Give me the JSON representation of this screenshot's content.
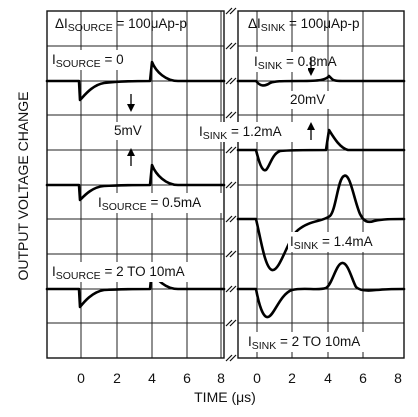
{
  "chart_data": {
    "type": "line",
    "xlabel": "TIME (μs)",
    "ylabel": "OUTPUT VOLTAGE CHANGE",
    "panels": [
      {
        "id": "source",
        "title_main": "ΔI",
        "title_sub": "SOURCE",
        "title_rest": " = 100μAp-p",
        "x_ticks": [
          "0",
          "2",
          "4",
          "6",
          "8"
        ],
        "xlim": [
          -2,
          9
        ],
        "scale_label": "5mV",
        "traces": [
          {
            "label_main": "I",
            "label_sub": "SOURCE",
            "label_rest": " = 0",
            "peak_mV": 4.0
          },
          {
            "label_main": "I",
            "label_sub": "SOURCE",
            "label_rest": " = 0.5mA",
            "peak_mV": 4.2
          },
          {
            "label_main": "I",
            "label_sub": "SOURCE",
            "label_rest": " = 2 TO 10mA",
            "peak_mV": 4.2
          }
        ]
      },
      {
        "id": "sink",
        "title_main": "ΔI",
        "title_sub": "SINK",
        "title_rest": " = 100μAp-p",
        "x_ticks": [
          "0",
          "2",
          "4",
          "6",
          "8"
        ],
        "xlim": [
          -2,
          9
        ],
        "scale_label": "20mV",
        "traces": [
          {
            "label_main": "I",
            "label_sub": "SINK",
            "label_rest": " = 0.8mA",
            "peak_mV": 3
          },
          {
            "label_main": "I",
            "label_sub": "SINK",
            "label_rest": " = 1.2mA",
            "peak_mV": 17
          },
          {
            "label_main": "I",
            "label_sub": "SINK",
            "label_rest": " = 1.4mA",
            "peak_mV": 48
          },
          {
            "label_main": "I",
            "label_sub": "SINK",
            "label_rest": " = 2 TO 10mA",
            "peak_mV": 22
          }
        ]
      }
    ],
    "grid": true
  }
}
